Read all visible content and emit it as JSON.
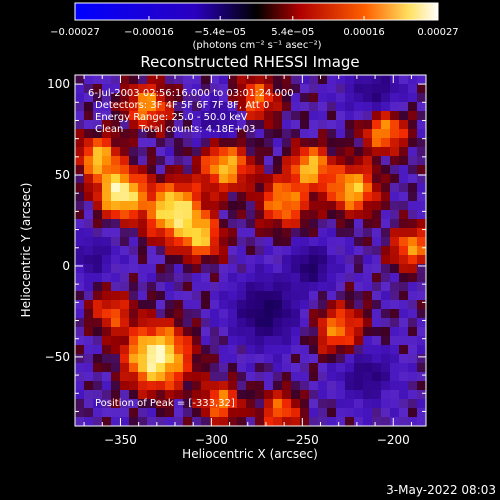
{
  "chart_data": {
    "type": "heatmap",
    "title": "Reconstructed RHESSI Image",
    "xlabel": "Heliocentric X (arcsec)",
    "ylabel": "Heliocentric Y (arcsec)",
    "xlim": [
      -375,
      -182
    ],
    "ylim": [
      -88,
      105
    ],
    "x_ticks": [
      -350,
      -300,
      -250,
      -200
    ],
    "x_tick_labels": [
      "−350",
      "−300",
      "−250",
      "−200"
    ],
    "y_ticks": [
      -50,
      0,
      50,
      100
    ],
    "y_tick_labels": [
      "−50",
      "0",
      "50",
      "100"
    ],
    "colorbar": {
      "range": [
        -0.00027,
        0.00027
      ],
      "ticks": [
        -0.00027,
        -0.00016,
        -5.4e-05,
        5.4e-05,
        0.00016,
        0.00027
      ],
      "tick_labels": [
        "−0.00027",
        "−0.00016",
        "−5.4e−05",
        "5.4e−05",
        "0.00016",
        "0.00027"
      ],
      "units_label": "(photons cm⁻² s⁻¹ asec⁻²)"
    },
    "annotations": {
      "time_range": "6-Jul-2003 02:56:16.000 to 03:01:24.000",
      "detectors": "Detectors: 3F 4F 5F 6F 7F 8F, Att 0",
      "energy_range": "Energy Range: 25.0 - 50.0 keV",
      "clean_counts": "Clean     Total counts: 4.18E+03",
      "peak_position": "Position of Peak = [-333,32]"
    },
    "sources": [
      {
        "x": -330,
        "y": -50,
        "sigma": 12,
        "amp": 1.0
      },
      {
        "x": -350,
        "y": 40,
        "sigma": 9,
        "amp": 0.95
      },
      {
        "x": -320,
        "y": 30,
        "sigma": 11,
        "amp": 0.9
      },
      {
        "x": -362,
        "y": 60,
        "sigma": 8,
        "amp": 0.7
      },
      {
        "x": -335,
        "y": 88,
        "sigma": 9,
        "amp": 0.6
      },
      {
        "x": -305,
        "y": 15,
        "sigma": 8,
        "amp": 0.6
      },
      {
        "x": -292,
        "y": 55,
        "sigma": 9,
        "amp": 0.75
      },
      {
        "x": -260,
        "y": 35,
        "sigma": 10,
        "amp": 0.6
      },
      {
        "x": -245,
        "y": 55,
        "sigma": 8,
        "amp": 0.7
      },
      {
        "x": -222,
        "y": 42,
        "sigma": 9,
        "amp": 0.75
      },
      {
        "x": -205,
        "y": 75,
        "sigma": 9,
        "amp": 0.65
      },
      {
        "x": -190,
        "y": 10,
        "sigma": 8,
        "amp": 0.6
      },
      {
        "x": -230,
        "y": -35,
        "sigma": 10,
        "amp": 0.55
      },
      {
        "x": -262,
        "y": -80,
        "sigma": 8,
        "amp": 0.5
      },
      {
        "x": -295,
        "y": -75,
        "sigma": 8,
        "amp": 0.55
      },
      {
        "x": -355,
        "y": -25,
        "sigma": 8,
        "amp": 0.45
      },
      {
        "x": -275,
        "y": 92,
        "sigma": 9,
        "amp": 0.5
      },
      {
        "x": -245,
        "y": 0,
        "sigma": 8,
        "amp": -0.6
      },
      {
        "x": -270,
        "y": -25,
        "sigma": 12,
        "amp": -0.7
      },
      {
        "x": -215,
        "y": -60,
        "sigma": 10,
        "amp": -0.5
      },
      {
        "x": -210,
        "y": 95,
        "sigma": 10,
        "amp": -0.5
      },
      {
        "x": -295,
        "y": 80,
        "sigma": 8,
        "amp": -0.4
      },
      {
        "x": -365,
        "y": 5,
        "sigma": 8,
        "amp": -0.4
      }
    ]
  },
  "footer": {
    "date": "3-May-2022 08:03"
  }
}
